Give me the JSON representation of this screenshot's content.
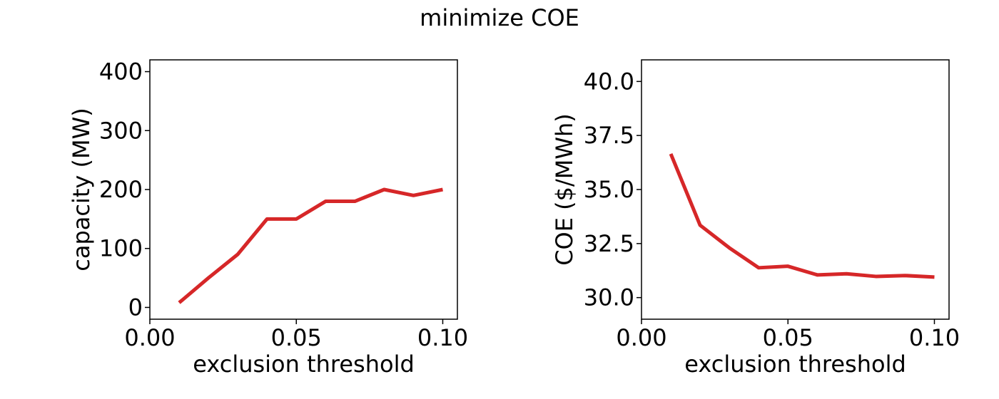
{
  "figure": {
    "title": "minimize COE"
  },
  "colors": {
    "line": "#d62728",
    "axes": "#000000",
    "background": "#ffffff"
  },
  "chart_data": [
    {
      "type": "line",
      "title": "",
      "xlabel": "exclusion threshold",
      "ylabel": "capacity (MW)",
      "xlim": [
        0.0,
        0.105
      ],
      "ylim": [
        -20,
        420
      ],
      "xticks": [
        0.0,
        0.05,
        0.1
      ],
      "xtick_labels": [
        "0.00",
        "0.05",
        "0.10"
      ],
      "yticks": [
        0,
        100,
        200,
        300,
        400
      ],
      "ytick_labels": [
        "0",
        "100",
        "200",
        "300",
        "400"
      ],
      "grid": false,
      "series": [
        {
          "x": [
            0.01,
            0.02,
            0.03,
            0.04,
            0.05,
            0.06,
            0.07,
            0.08,
            0.09,
            0.1
          ],
          "values": [
            8,
            50,
            90,
            150,
            150,
            180,
            180,
            200,
            190,
            200
          ]
        }
      ]
    },
    {
      "type": "line",
      "title": "",
      "xlabel": "exclusion threshold",
      "ylabel": "COE ($/MWh)",
      "xlim": [
        0.0,
        0.105
      ],
      "ylim": [
        29.0,
        41.0
      ],
      "xticks": [
        0.0,
        0.05,
        0.1
      ],
      "xtick_labels": [
        "0.00",
        "0.05",
        "0.10"
      ],
      "yticks": [
        30.0,
        32.5,
        35.0,
        37.5,
        40.0
      ],
      "ytick_labels": [
        "30.0",
        "32.5",
        "35.0",
        "37.5",
        "40.0"
      ],
      "grid": false,
      "series": [
        {
          "x": [
            0.01,
            0.02,
            0.03,
            0.04,
            0.05,
            0.06,
            0.07,
            0.08,
            0.09,
            0.1
          ],
          "values": [
            36.65,
            33.35,
            32.3,
            31.38,
            31.45,
            31.05,
            31.1,
            30.98,
            31.02,
            30.95
          ]
        }
      ]
    }
  ]
}
